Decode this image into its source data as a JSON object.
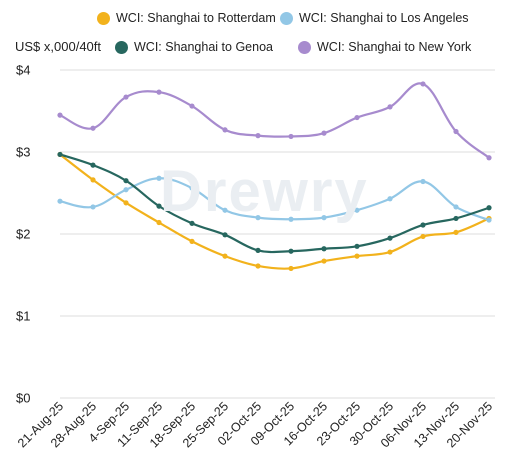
{
  "colors": {
    "rotterdam": "#f2b21c",
    "los_angeles": "#92c7e6",
    "genoa": "#27675f",
    "new_york": "#a78bce",
    "grid": "#dedede",
    "axis_text": "#222222",
    "watermark": "#eaeef2"
  },
  "watermark": "Drewry",
  "chart_data": {
    "type": "line",
    "ylabel": "US$ x,000/40ft",
    "ylim": [
      0,
      4
    ],
    "yticks": [
      0,
      1,
      2,
      3,
      4
    ],
    "ytick_labels": [
      "$0",
      "$1",
      "$2",
      "$3",
      "$4"
    ],
    "grid": "horizontal",
    "legend_position": "top",
    "categories": [
      "21-Aug-25",
      "28-Aug-25",
      "4-Sep-25",
      "11-Sep-25",
      "18-Sep-25",
      "25-Sep-25",
      "02-Oct-25",
      "09-Oct-25",
      "16-Oct-25",
      "23-Oct-25",
      "30-Oct-25",
      "06-Nov-25",
      "13-Nov-25",
      "20-Nov-25"
    ],
    "series": [
      {
        "name": "WCI: Shanghai to Rotterdam",
        "color_key": "rotterdam",
        "values": [
          2.97,
          2.66,
          2.38,
          2.14,
          1.91,
          1.73,
          1.61,
          1.58,
          1.67,
          1.73,
          1.78,
          1.97,
          2.02,
          2.19
        ]
      },
      {
        "name": "WCI: Shanghai to Los Angeles",
        "color_key": "los_angeles",
        "values": [
          2.4,
          2.33,
          2.54,
          2.68,
          2.56,
          2.29,
          2.2,
          2.18,
          2.2,
          2.29,
          2.43,
          2.64,
          2.33,
          2.17
        ]
      },
      {
        "name": "WCI: Shanghai to Genoa",
        "color_key": "genoa",
        "values": [
          2.97,
          2.84,
          2.65,
          2.34,
          2.13,
          1.99,
          1.8,
          1.79,
          1.82,
          1.85,
          1.95,
          2.11,
          2.19,
          2.32
        ]
      },
      {
        "name": "WCI: Shanghai to New York",
        "color_key": "new_york",
        "values": [
          3.45,
          3.29,
          3.67,
          3.73,
          3.56,
          3.27,
          3.2,
          3.19,
          3.23,
          3.42,
          3.55,
          3.83,
          3.25,
          2.93
        ]
      }
    ]
  }
}
